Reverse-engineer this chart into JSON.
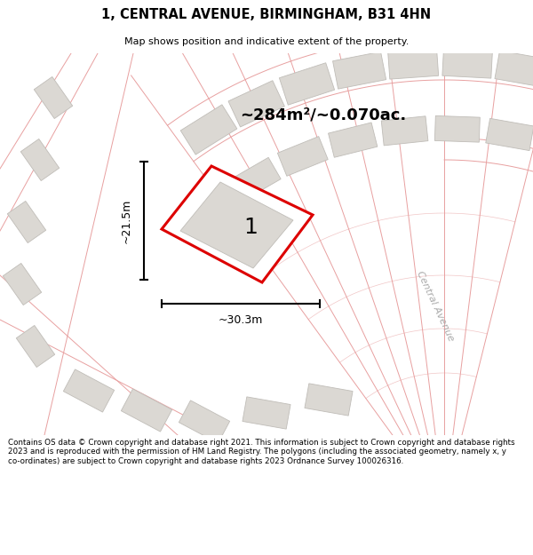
{
  "title": "1, CENTRAL AVENUE, BIRMINGHAM, B31 4HN",
  "subtitle": "Map shows position and indicative extent of the property.",
  "area_text": "~284m²/~0.070ac.",
  "width_label": "~30.3m",
  "height_label": "~21.5m",
  "plot_label": "1",
  "street_label": "Central Avenue",
  "footer": "Contains OS data © Crown copyright and database right 2021. This information is subject to Crown copyright and database rights 2023 and is reproduced with the permission of HM Land Registry. The polygons (including the associated geometry, namely x, y co-ordinates) are subject to Crown copyright and database rights 2023 Ordnance Survey 100026316.",
  "bg_color": "#f5f3f0",
  "map_bg": "#f5f3f0",
  "plot_outline_color": "#dd0000",
  "road_line_color": "#e8a0a0",
  "building_color": "#dbd8d3",
  "building_outline": "#c0bdb8",
  "title_color": "#000000",
  "footer_color": "#000000",
  "arc_road_color": "#e8a0a0",
  "radial_line_color": "#e8a0a0"
}
